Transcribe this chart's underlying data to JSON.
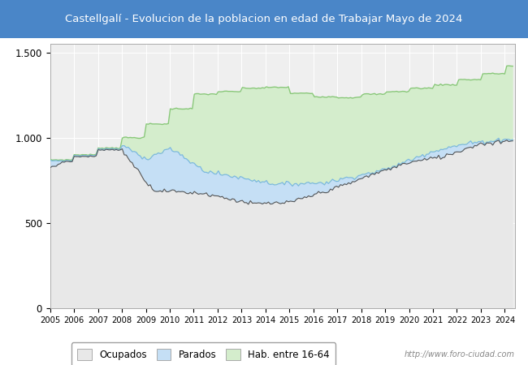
{
  "title": "Castellgalí - Evolucion de la poblacion en edad de Trabajar Mayo de 2024",
  "title_bg_color": "#4a86c8",
  "title_text_color": "white",
  "watermark": "http://www.foro-ciudad.com",
  "color_ocupados": "#e8e8e8",
  "color_parados": "#c5dff5",
  "color_hab": "#d4edcc",
  "line_ocupados": "#555555",
  "line_parados": "#7ab8e0",
  "line_hab": "#88c878",
  "legend_labels": [
    "Ocupados",
    "Parados",
    "Hab. entre 16-64"
  ],
  "bg_color": "#e8e8e8",
  "plot_bg": "#efefef"
}
